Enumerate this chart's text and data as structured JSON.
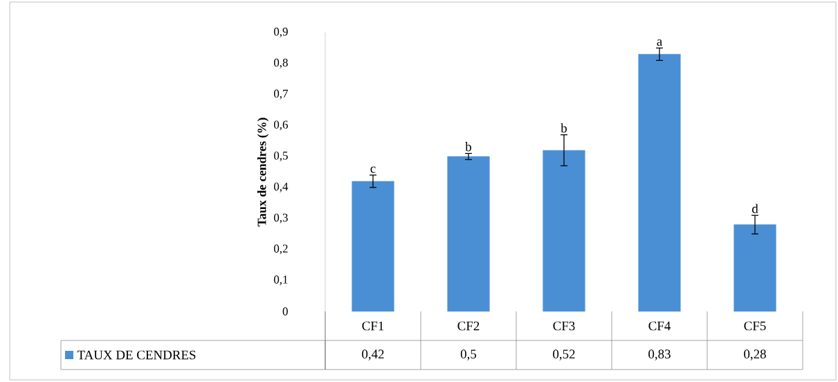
{
  "chart_data": {
    "type": "bar",
    "ylabel": "Taux de cendres (%)",
    "categories": [
      "CF1",
      "CF2",
      "CF3",
      "CF4",
      "CF5"
    ],
    "series": [
      {
        "name": "TAUX DE CENDRES",
        "color": "#4a8fd4",
        "values": [
          0.42,
          0.5,
          0.52,
          0.83,
          0.28
        ],
        "errors": [
          0.02,
          0.01,
          0.05,
          0.02,
          0.03
        ],
        "value_labels": [
          "0,42",
          "0,5",
          "0,52",
          "0,83",
          "0,28"
        ]
      }
    ],
    "ylim": [
      0,
      0.9
    ],
    "yticks": [
      0,
      {
        "value": 0.1,
        "label": "0,1"
      },
      {
        "value": 0.2,
        "label": "0,2"
      },
      {
        "value": 0.3,
        "label": "0,3"
      },
      {
        "value": 0.4,
        "label": "0,4"
      },
      {
        "value": 0.5,
        "label": "0,5"
      },
      {
        "value": 0.6,
        "label": "0,6"
      },
      {
        "value": 0.7,
        "label": "0,7"
      },
      {
        "value": 0.8,
        "label": "0,8"
      },
      {
        "value": 0.9,
        "label": "0,9"
      }
    ],
    "annotations": [
      {
        "text": "c",
        "x": "CF1",
        "y": 0.44
      },
      {
        "text": "b",
        "x": "CF2",
        "y": 0.51
      },
      {
        "text": "b",
        "x": "CF3",
        "y": 0.57
      },
      {
        "text": "a",
        "x": "CF4",
        "y": 0.85
      },
      {
        "text": "d",
        "x": "CF5",
        "y": 0.31
      }
    ],
    "legend": "bottom",
    "grid": false
  }
}
